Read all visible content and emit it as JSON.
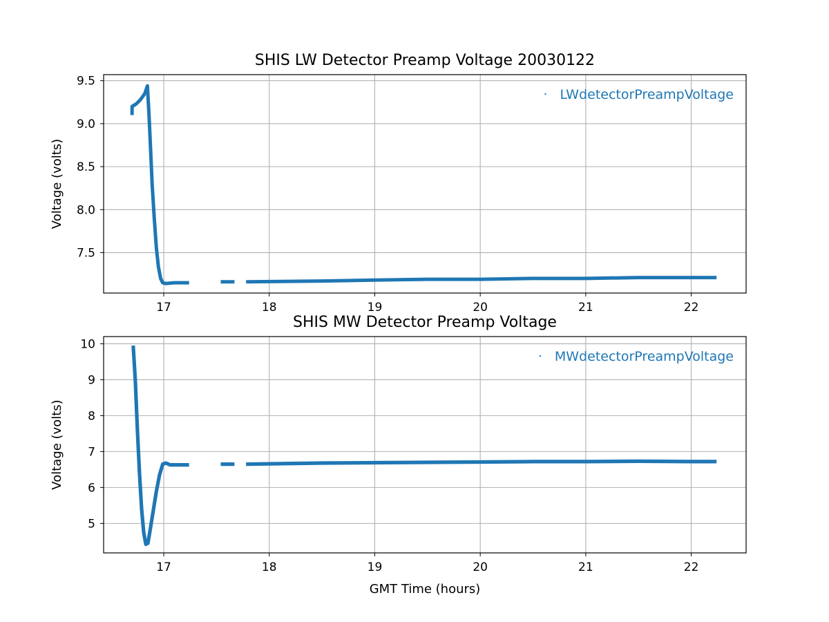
{
  "chart_data": [
    {
      "type": "scatter",
      "title": "SHIS LW Detector Preamp Voltage 20030122",
      "xlabel": "",
      "ylabel": "Voltage (volts)",
      "xlim": [
        16.43,
        22.52
      ],
      "ylim": [
        7.03,
        9.57
      ],
      "xticks": [
        17,
        18,
        19,
        20,
        21,
        22
      ],
      "yticks": [
        7.5,
        8.0,
        8.5,
        9.0,
        9.5
      ],
      "ytick_labels": [
        "7.5",
        "8.0",
        "8.5",
        "9.0",
        "9.5"
      ],
      "grid": true,
      "legend_position": "top-right",
      "series": [
        {
          "name": "LWdetectorPreampVoltage",
          "color": "#1f77b4",
          "segments": [
            [
              [
                16.7,
                9.1
              ],
              [
                16.7,
                9.2
              ],
              [
                16.74,
                9.23
              ],
              [
                16.78,
                9.28
              ],
              [
                16.82,
                9.35
              ],
              [
                16.845,
                9.44
              ],
              [
                16.86,
                9.1
              ],
              [
                16.875,
                8.7
              ],
              [
                16.89,
                8.3
              ],
              [
                16.91,
                7.9
              ],
              [
                16.93,
                7.55
              ],
              [
                16.95,
                7.33
              ],
              [
                16.97,
                7.2
              ],
              [
                16.99,
                7.15
              ],
              [
                17.02,
                7.14
              ],
              [
                17.1,
                7.15
              ],
              [
                17.24,
                7.15
              ]
            ],
            [
              [
                17.54,
                7.16
              ],
              [
                17.67,
                7.16
              ]
            ],
            [
              [
                17.78,
                7.16
              ],
              [
                18.5,
                7.17
              ],
              [
                19.0,
                7.18
              ],
              [
                19.5,
                7.19
              ],
              [
                20.0,
                7.19
              ],
              [
                20.5,
                7.2
              ],
              [
                21.0,
                7.2
              ],
              [
                21.5,
                7.21
              ],
              [
                22.0,
                7.21
              ],
              [
                22.24,
                7.21
              ]
            ]
          ],
          "band_halfwidth": 0.02
        }
      ]
    },
    {
      "type": "scatter",
      "title": "SHIS MW Detector Preamp Voltage",
      "xlabel": "GMT Time (hours)",
      "ylabel": "Voltage (volts)",
      "xlim": [
        16.43,
        22.52
      ],
      "ylim": [
        4.18,
        10.2
      ],
      "xticks": [
        17,
        18,
        19,
        20,
        21,
        22
      ],
      "yticks": [
        5,
        6,
        7,
        8,
        9,
        10
      ],
      "ytick_labels": [
        "5",
        "6",
        "7",
        "8",
        "9",
        "10"
      ],
      "grid": true,
      "legend_position": "top-right",
      "series": [
        {
          "name": "MWdetectorPreampVoltage",
          "color": "#1f77b4",
          "segments": [
            [
              [
                16.71,
                9.95
              ],
              [
                16.73,
                9.0
              ],
              [
                16.75,
                7.6
              ],
              [
                16.77,
                6.4
              ],
              [
                16.79,
                5.4
              ],
              [
                16.81,
                4.75
              ],
              [
                16.83,
                4.42
              ],
              [
                16.85,
                4.45
              ],
              [
                16.87,
                4.8
              ],
              [
                16.9,
                5.35
              ],
              [
                16.93,
                5.9
              ],
              [
                16.96,
                6.35
              ],
              [
                16.99,
                6.65
              ],
              [
                17.02,
                6.68
              ],
              [
                17.06,
                6.63
              ],
              [
                17.24,
                6.63
              ]
            ],
            [
              [
                17.54,
                6.65
              ],
              [
                17.67,
                6.65
              ]
            ],
            [
              [
                17.78,
                6.65
              ],
              [
                18.5,
                6.68
              ],
              [
                19.0,
                6.69
              ],
              [
                19.5,
                6.7
              ],
              [
                20.0,
                6.71
              ],
              [
                20.5,
                6.72
              ],
              [
                21.0,
                6.72
              ],
              [
                21.5,
                6.73
              ],
              [
                22.0,
                6.72
              ],
              [
                22.24,
                6.72
              ]
            ]
          ],
          "band_halfwidth": 0.05
        }
      ]
    }
  ]
}
